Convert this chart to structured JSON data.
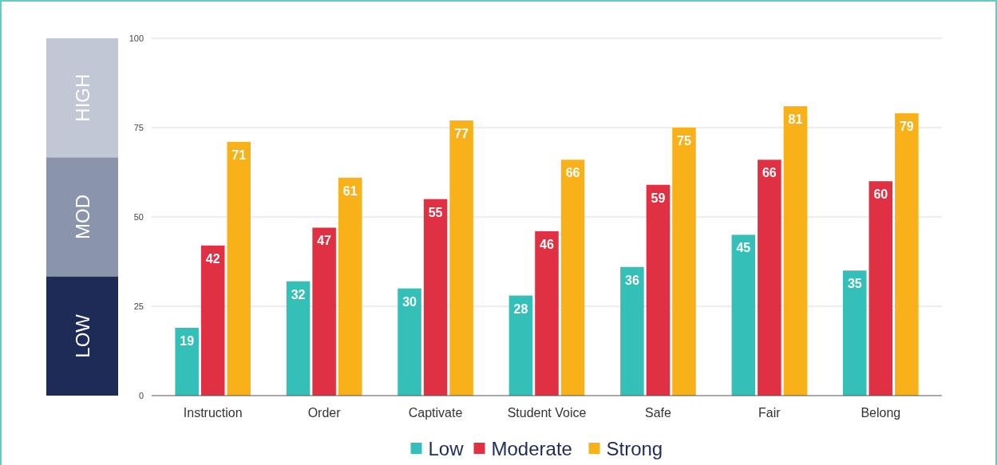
{
  "chart_data": {
    "type": "bar",
    "categories": [
      "Instruction",
      "Order",
      "Captivate",
      "Student Voice",
      "Safe",
      "Fair",
      "Belong"
    ],
    "series": [
      {
        "name": "Low",
        "color": "#35bfb9",
        "values": [
          19,
          32,
          30,
          28,
          36,
          45,
          35
        ]
      },
      {
        "name": "Moderate",
        "color": "#e03144",
        "values": [
          42,
          47,
          55,
          46,
          59,
          66,
          60
        ]
      },
      {
        "name": "Strong",
        "color": "#f9b11a",
        "values": [
          71,
          61,
          77,
          66,
          75,
          81,
          79
        ]
      }
    ],
    "ylim": [
      0,
      100
    ],
    "yticks": [
      0,
      25,
      50,
      75,
      100
    ],
    "grid": "y",
    "legend": "bottom",
    "data_labels": true,
    "annotations": [
      "HIGH",
      "MOD",
      "LOW"
    ]
  }
}
